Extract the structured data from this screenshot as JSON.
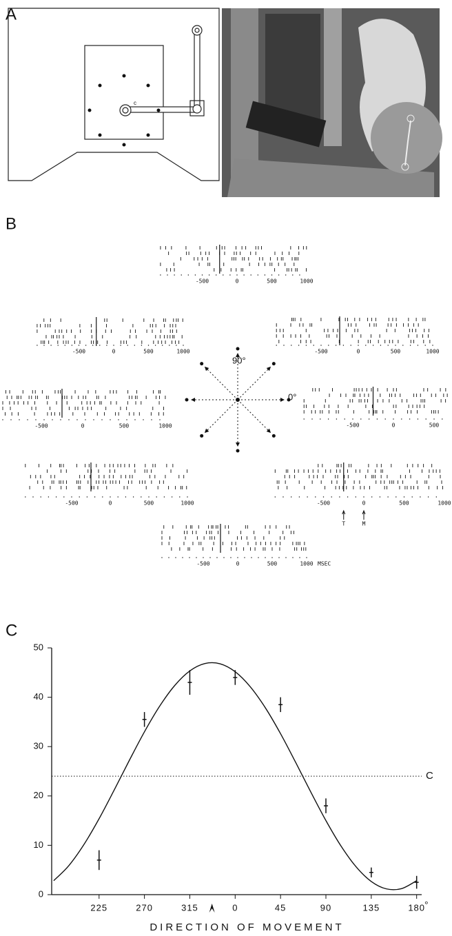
{
  "panels": {
    "a": {
      "label": "A",
      "diagram_label": "c"
    },
    "b": {
      "label": "B",
      "angle_labels": [
        "90°",
        "0°"
      ],
      "rasters": [
        {
          "ticks": [
            -500,
            0,
            500,
            1000
          ]
        },
        {
          "ticks": [
            -500,
            0,
            500,
            1000
          ]
        },
        {
          "ticks": [
            -500,
            0,
            500,
            1000
          ]
        },
        {
          "ticks": [
            -500,
            0,
            500,
            1000
          ]
        },
        {
          "ticks": [
            -500,
            0,
            500
          ]
        },
        {
          "ticks": [
            -500,
            0,
            500,
            1000
          ]
        },
        {
          "ticks": [
            -500,
            0,
            500,
            1000
          ],
          "markers": [
            "T",
            "M"
          ]
        },
        {
          "ticks": [
            -500,
            0,
            500,
            1000
          ],
          "unit": "MSEC"
        }
      ]
    },
    "c": {
      "label": "C"
    }
  },
  "chart_data": {
    "type": "scatter",
    "x_title": "DIRECTION OF MOVEMENT",
    "x_unit": "°",
    "x": [
      225,
      270,
      315,
      360,
      405,
      450,
      495,
      540
    ],
    "values": [
      7,
      35.5,
      43,
      44,
      38.5,
      18,
      4.5,
      2.5
    ],
    "errors": [
      2,
      1.5,
      2.5,
      1.5,
      1.5,
      1.5,
      1,
      1.3
    ],
    "fit": {
      "x": [
        180,
        195,
        210,
        225,
        240,
        255,
        270,
        285,
        300,
        315,
        330,
        345,
        360,
        375,
        390,
        405,
        420,
        435,
        450,
        465,
        480,
        495,
        510,
        525,
        540
      ],
      "values": [
        2.83,
        5.88,
        10.16,
        15.38,
        21.2,
        27.2,
        32.99,
        38.16,
        42.37,
        45.33,
        46.83,
        46.78,
        45.17,
        42.12,
        37.84,
        32.62,
        26.8,
        20.8,
        15.01,
        9.84,
        5.63,
        2.67,
        1.17,
        1.22,
        2.83
      ]
    },
    "ref_line": {
      "value": 24,
      "label": "C"
    },
    "preferred_direction": 337,
    "color": "#111111",
    "xlim": [
      178,
      545
    ],
    "ylim": [
      0,
      50
    ],
    "xticks": [
      225,
      270,
      315,
      {
        "value": 360,
        "label": "0"
      },
      {
        "value": 405,
        "label": "45"
      },
      {
        "value": 450,
        "label": "90"
      },
      {
        "value": 495,
        "label": "135"
      },
      {
        "value": 540,
        "label": "180"
      }
    ],
    "yticks": [
      0,
      10,
      20,
      30,
      40,
      50
    ]
  }
}
